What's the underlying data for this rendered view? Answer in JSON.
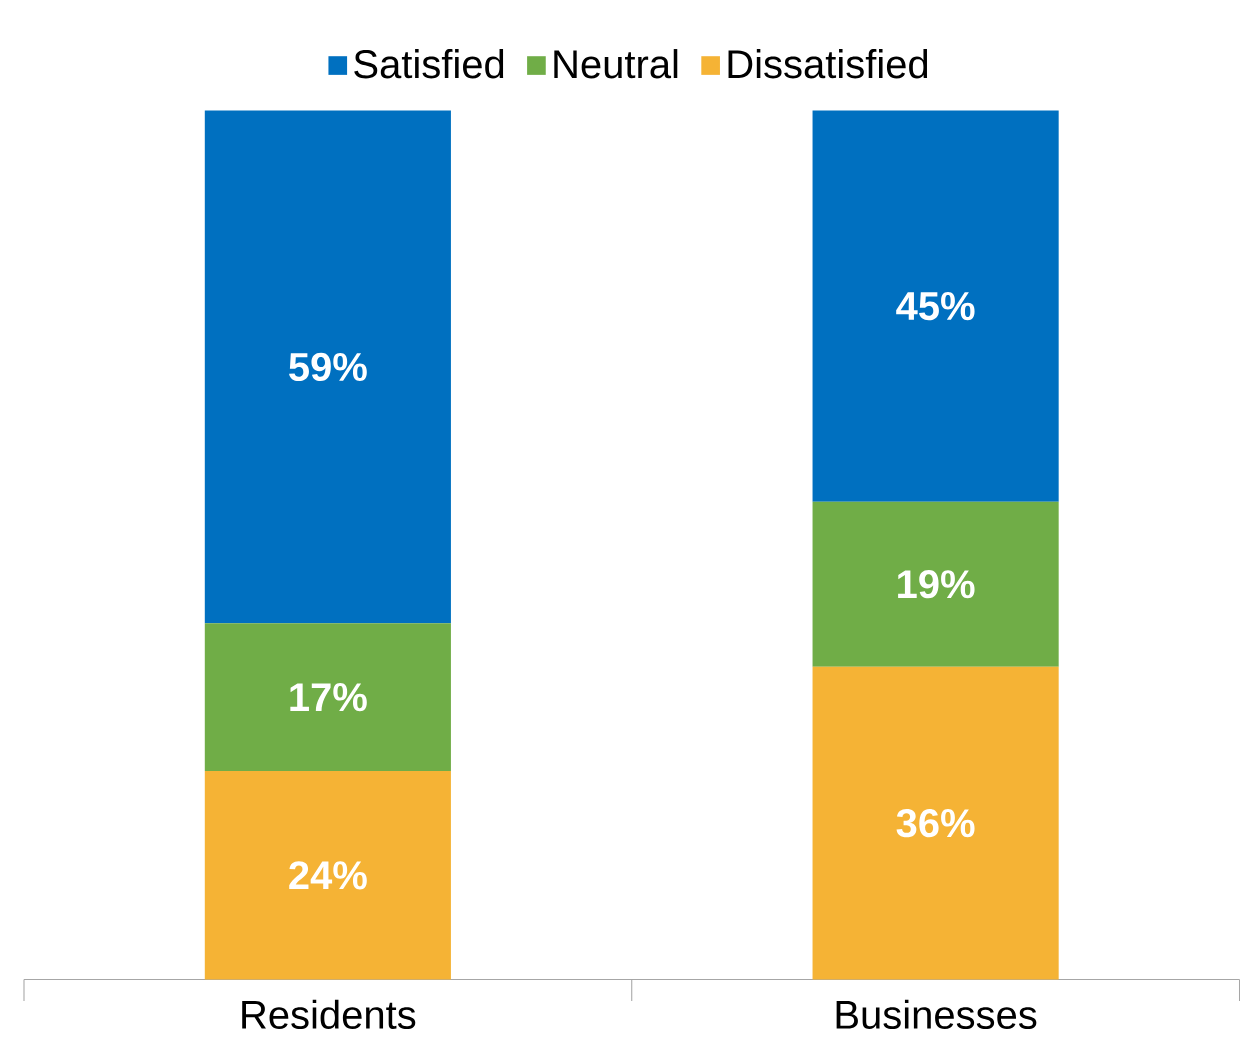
{
  "chart_data": {
    "type": "bar",
    "stacked": true,
    "categories": [
      "Residents",
      "Businesses"
    ],
    "legend": "top",
    "series": [
      {
        "name": "Dissatisfied",
        "color": "#f5b335",
        "values": [
          24,
          36
        ],
        "value_labels": [
          "24%",
          "36%"
        ]
      },
      {
        "name": "Neutral",
        "color": "#70ad47",
        "values": [
          17,
          19
        ],
        "value_labels": [
          "17%",
          "19%"
        ]
      },
      {
        "name": "Satisfied",
        "color": "#0070c0",
        "values": [
          59,
          45
        ],
        "value_labels": [
          "59%",
          "45%"
        ]
      }
    ]
  }
}
